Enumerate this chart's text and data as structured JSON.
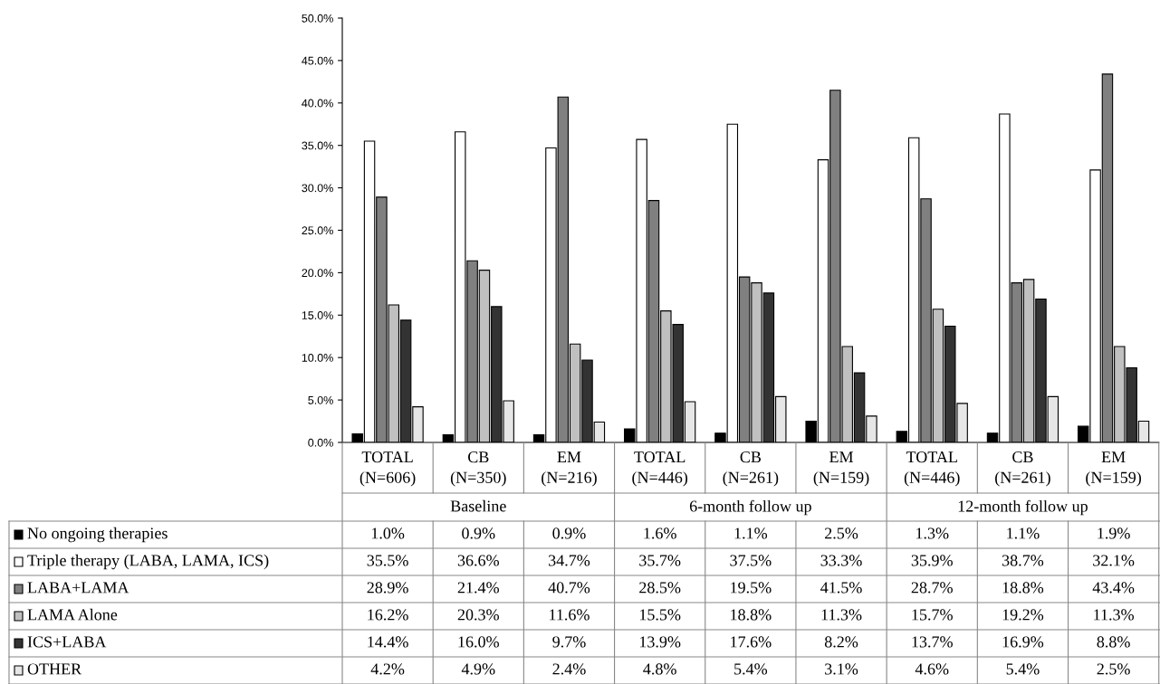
{
  "chart_data": {
    "type": "bar",
    "categories": [
      "TOTAL\n(N=606)",
      "CB\n(N=350)",
      "EM\n(N=216)",
      "TOTAL\n(N=446)",
      "CB\n(N=261)",
      "EM\n(N=159)",
      "TOTAL\n(N=446)",
      "CB\n(N=261)",
      "EM\n(N=159)"
    ],
    "annotations": [
      "Baseline",
      "6-month follow up",
      "12-month follow up"
    ],
    "series": [
      {
        "name": "No ongoing therapies",
        "color": "#000000",
        "values": [
          1.0,
          0.9,
          0.9,
          1.6,
          1.1,
          2.5,
          1.3,
          1.1,
          1.9
        ],
        "value_labels": [
          "1.0%",
          "0.9%",
          "0.9%",
          "1.6%",
          "1.1%",
          "2.5%",
          "1.3%",
          "1.1%",
          "1.9%"
        ]
      },
      {
        "name": "Triple therapy (LABA, LAMA, ICS)",
        "color": "#ffffff",
        "values": [
          35.5,
          36.6,
          34.7,
          35.7,
          37.5,
          33.3,
          35.9,
          38.7,
          32.1
        ],
        "value_labels": [
          "35.5%",
          "36.6%",
          "34.7%",
          "35.7%",
          "37.5%",
          "33.3%",
          "35.9%",
          "38.7%",
          "32.1%"
        ]
      },
      {
        "name": "LABA+LAMA",
        "color": "#808080",
        "values": [
          28.9,
          21.4,
          40.7,
          28.5,
          19.5,
          41.5,
          28.7,
          18.8,
          43.4
        ],
        "value_labels": [
          "28.9%",
          "21.4%",
          "40.7%",
          "28.5%",
          "19.5%",
          "41.5%",
          "28.7%",
          "18.8%",
          "43.4%"
        ]
      },
      {
        "name": "LAMA Alone",
        "color": "#c0c0c0",
        "values": [
          16.2,
          20.3,
          11.6,
          15.5,
          18.8,
          11.3,
          15.7,
          19.2,
          11.3
        ],
        "value_labels": [
          "16.2%",
          "20.3%",
          "11.6%",
          "15.5%",
          "18.8%",
          "11.3%",
          "15.7%",
          "19.2%",
          "11.3%"
        ]
      },
      {
        "name": "ICS+LABA",
        "color": "#333333",
        "values": [
          14.4,
          16.0,
          9.7,
          13.9,
          17.6,
          8.2,
          13.7,
          16.9,
          8.8
        ],
        "value_labels": [
          "14.4%",
          "16.0%",
          "9.7%",
          "13.9%",
          "17.6%",
          "8.2%",
          "13.7%",
          "16.9%",
          "8.8%"
        ]
      },
      {
        "name": "OTHER",
        "color": "#e6e6e6",
        "values": [
          4.2,
          4.9,
          2.4,
          4.8,
          5.4,
          3.1,
          4.6,
          5.4,
          2.5
        ],
        "value_labels": [
          "4.2%",
          "4.9%",
          "2.4%",
          "4.8%",
          "5.4%",
          "3.1%",
          "4.6%",
          "5.4%",
          "2.5%"
        ]
      }
    ],
    "ylim": [
      0,
      50
    ],
    "yticks": [
      {
        "value": 0,
        "label": "0.0%"
      },
      {
        "value": 5,
        "label": "5.0%"
      },
      {
        "value": 10,
        "label": "10.0%"
      },
      {
        "value": 15,
        "label": "15.0%"
      },
      {
        "value": 20,
        "label": "20.0%"
      },
      {
        "value": 25,
        "label": "25.0%"
      },
      {
        "value": 30,
        "label": "30.0%"
      },
      {
        "value": 35,
        "label": "35.0%"
      },
      {
        "value": 40,
        "label": "40.0%"
      },
      {
        "value": 45,
        "label": "45.0%"
      },
      {
        "value": 50,
        "label": "50.0%"
      }
    ],
    "grid": false,
    "legend": "bottom left"
  }
}
